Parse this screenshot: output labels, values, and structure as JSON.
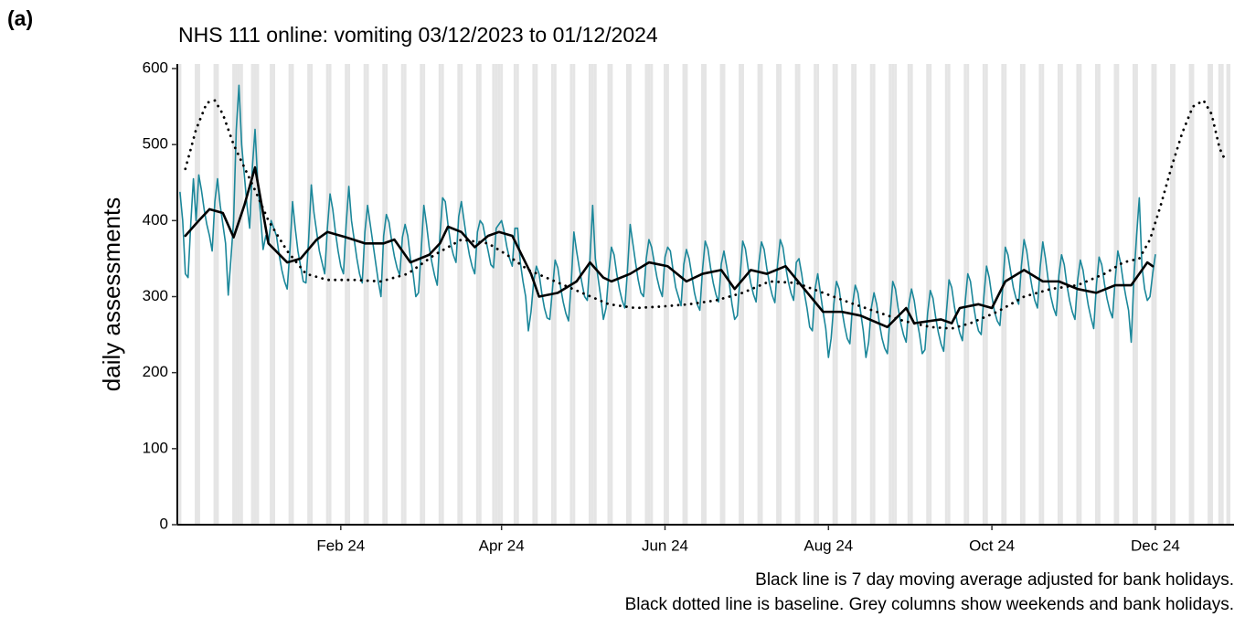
{
  "chart_data": {
    "type": "line",
    "tag": "(a)",
    "title": "NHS 111 online: vomiting 03/12/2023 to 01/12/2024",
    "ylabel": "daily assessments",
    "annotations": [
      "Black line is 7 day moving average adjusted for bank holidays.",
      "Black dotted line is baseline. Grey columns show weekends and bank holidays."
    ],
    "xlim": [
      -1,
      392
    ],
    "ylim": [
      0,
      600
    ],
    "yticks": [
      0,
      100,
      200,
      300,
      400,
      500,
      600
    ],
    "xticks": [
      {
        "value": 60,
        "label": "Feb 24"
      },
      {
        "value": 120,
        "label": "Apr 24"
      },
      {
        "value": 181,
        "label": "Jun 24"
      },
      {
        "value": 242,
        "label": "Aug 24"
      },
      {
        "value": 303,
        "label": "Oct 24"
      },
      {
        "value": 364,
        "label": "Dec 24"
      }
    ],
    "shaded_days": [
      0,
      6,
      7,
      13,
      14,
      20,
      21,
      22,
      23,
      27,
      28,
      29,
      34,
      35,
      41,
      42,
      48,
      49,
      55,
      56,
      62,
      63,
      69,
      70,
      76,
      77,
      83,
      84,
      90,
      91,
      97,
      98,
      104,
      105,
      111,
      112,
      117,
      118,
      119,
      120,
      125,
      126,
      132,
      133,
      139,
      140,
      146,
      147,
      153,
      154,
      155,
      160,
      161,
      167,
      168,
      174,
      175,
      176,
      181,
      182,
      188,
      189,
      195,
      196,
      202,
      203,
      209,
      210,
      216,
      217,
      223,
      224,
      230,
      231,
      237,
      238,
      244,
      245,
      251,
      252,
      258,
      259,
      265,
      266,
      267,
      272,
      273,
      279,
      280,
      286,
      287,
      293,
      294,
      300,
      301,
      307,
      308,
      314,
      315,
      321,
      322,
      328,
      329,
      335,
      336,
      342,
      343,
      349,
      350,
      356,
      357,
      363,
      364,
      370,
      371,
      377,
      378,
      384,
      385,
      388,
      389,
      391,
      392
    ],
    "shade_color": "#e5e5e5",
    "series": [
      {
        "color": "#1b879a",
        "style": "solid",
        "x": [
          0,
          1,
          2,
          3,
          4,
          5,
          6,
          7,
          8,
          9,
          10,
          11,
          12,
          13,
          14,
          15,
          16,
          17,
          18,
          19,
          20,
          21,
          22,
          23,
          24,
          25,
          26,
          27,
          28,
          29,
          30,
          31,
          32,
          33,
          34,
          35,
          36,
          37,
          38,
          39,
          40,
          41,
          42,
          43,
          44,
          45,
          46,
          47,
          48,
          49,
          50,
          51,
          52,
          53,
          54,
          55,
          56,
          57,
          58,
          59,
          60,
          61,
          62,
          63,
          64,
          65,
          66,
          67,
          68,
          69,
          70,
          71,
          72,
          73,
          74,
          75,
          76,
          77,
          78,
          79,
          80,
          81,
          82,
          83,
          84,
          85,
          86,
          87,
          88,
          89,
          90,
          91,
          92,
          93,
          94,
          95,
          96,
          97,
          98,
          99,
          100,
          101,
          102,
          103,
          104,
          105,
          106,
          107,
          108,
          109,
          110,
          111,
          112,
          113,
          114,
          115,
          116,
          117,
          118,
          119,
          120,
          121,
          122,
          123,
          124,
          125,
          126,
          127,
          128,
          129,
          130,
          131,
          132,
          133,
          134,
          135,
          136,
          137,
          138,
          139,
          140,
          141,
          142,
          143,
          144,
          145,
          146,
          147,
          148,
          149,
          150,
          151,
          152,
          153,
          154,
          155,
          156,
          157,
          158,
          159,
          160,
          161,
          162,
          163,
          164,
          165,
          166,
          167,
          168,
          169,
          170,
          171,
          172,
          173,
          174,
          175,
          176,
          177,
          178,
          179,
          180,
          181,
          182,
          183,
          184,
          185,
          186,
          187,
          188,
          189,
          190,
          191,
          192,
          193,
          194,
          195,
          196,
          197,
          198,
          199,
          200,
          201,
          202,
          203,
          204,
          205,
          206,
          207,
          208,
          209,
          210,
          211,
          212,
          213,
          214,
          215,
          216,
          217,
          218,
          219,
          220,
          221,
          222,
          223,
          224,
          225,
          226,
          227,
          228,
          229,
          230,
          231,
          232,
          233,
          234,
          235,
          236,
          237,
          238,
          239,
          240,
          241,
          242,
          243,
          244,
          245,
          246,
          247,
          248,
          249,
          250,
          251,
          252,
          253,
          254,
          255,
          256,
          257,
          258,
          259,
          260,
          261,
          262,
          263,
          264,
          265,
          266,
          267,
          268,
          269,
          270,
          271,
          272,
          273,
          274,
          275,
          276,
          277,
          278,
          279,
          280,
          281,
          282,
          283,
          284,
          285,
          286,
          287,
          288,
          289,
          290,
          291,
          292,
          293,
          294,
          295,
          296,
          297,
          298,
          299,
          300,
          301,
          302,
          303,
          304,
          305,
          306,
          307,
          308,
          309,
          310,
          311,
          312,
          313,
          314,
          315,
          316,
          317,
          318,
          319,
          320,
          321,
          322,
          323,
          324,
          325,
          326,
          327,
          328,
          329,
          330,
          331,
          332,
          333,
          334,
          335,
          336,
          337,
          338,
          339,
          340,
          341,
          342,
          343,
          344,
          345,
          346,
          347,
          348,
          349,
          350,
          351,
          352,
          353,
          354,
          355,
          356,
          357,
          358,
          359,
          360,
          361,
          362,
          363,
          364
        ],
        "values": [
          437,
          400,
          330,
          325,
          395,
          455,
          400,
          460,
          440,
          415,
          395,
          380,
          360,
          425,
          455,
          420,
          395,
          370,
          302,
          350,
          400,
          520,
          578,
          500,
          460,
          420,
          390,
          470,
          520,
          450,
          410,
          362,
          380,
          370,
          400,
          390,
          380,
          355,
          335,
          320,
          310,
          360,
          425,
          390,
          360,
          340,
          320,
          318,
          375,
          447,
          410,
          385,
          360,
          345,
          330,
          390,
          435,
          415,
          385,
          360,
          340,
          330,
          395,
          445,
          400,
          375,
          350,
          330,
          318,
          385,
          420,
          395,
          370,
          345,
          320,
          300,
          380,
          408,
          398,
          373,
          353,
          338,
          328,
          378,
          395,
          380,
          350,
          330,
          300,
          305,
          360,
          420,
          395,
          365,
          345,
          328,
          315,
          380,
          430,
          425,
          395,
          370,
          355,
          345,
          405,
          425,
          400,
          375,
          355,
          340,
          330,
          385,
          400,
          395,
          377,
          360,
          342,
          338,
          390,
          395,
          400,
          385,
          365,
          350,
          340,
          390,
          390,
          345,
          320,
          300,
          255,
          280,
          320,
          340,
          330,
          305,
          285,
          272,
          270,
          310,
          348,
          338,
          313,
          293,
          278,
          268,
          318,
          385,
          360,
          338,
          318,
          300,
          295,
          350,
          420,
          350,
          325,
          300,
          270,
          285,
          330,
          365,
          355,
          330,
          310,
          295,
          285,
          335,
          395,
          370,
          345,
          322,
          305,
          300,
          350,
          375,
          365,
          345,
          325,
          310,
          300,
          352,
          365,
          360,
          335,
          312,
          300,
          288,
          342,
          362,
          350,
          328,
          305,
          290,
          282,
          335,
          373,
          363,
          338,
          318,
          303,
          293,
          343,
          360,
          340,
          318,
          290,
          270,
          275,
          325,
          373,
          363,
          338,
          318,
          303,
          293,
          343,
          372,
          362,
          337,
          317,
          302,
          292,
          342,
          375,
          365,
          340,
          320,
          305,
          295,
          345,
          350,
          330,
          305,
          285,
          260,
          255,
          310,
          330,
          305,
          280,
          258,
          220,
          245,
          290,
          320,
          310,
          283,
          262,
          245,
          238,
          290,
          315,
          305,
          280,
          255,
          220,
          240,
          285,
          305,
          290,
          265,
          245,
          232,
          225,
          275,
          320,
          310,
          285,
          265,
          250,
          240,
          290,
          310,
          295,
          270,
          250,
          225,
          230,
          278,
          308,
          298,
          273,
          253,
          238,
          228,
          278,
          322,
          312,
          287,
          267,
          252,
          242,
          292,
          330,
          320,
          292,
          270,
          255,
          250,
          300,
          340,
          325,
          300,
          280,
          268,
          262,
          310,
          365,
          355,
          333,
          312,
          298,
          290,
          340,
          375,
          360,
          333,
          312,
          295,
          285,
          338,
          372,
          350,
          322,
          300,
          285,
          275,
          328,
          355,
          342,
          315,
          295,
          280,
          270,
          322,
          348,
          335,
          310,
          288,
          272,
          258,
          315,
          352,
          342,
          317,
          297,
          282,
          272,
          322,
          360,
          345,
          320,
          300,
          282,
          240,
          325,
          380,
          430,
          340,
          310,
          295,
          300,
          330,
          355
        ]
      },
      {
        "color": "#000000",
        "style": "dotted",
        "x": [
          2,
          6,
          10,
          13,
          16,
          20,
          24,
          28,
          33,
          40,
          47,
          55,
          65,
          75,
          85,
          95,
          105,
          115,
          122,
          130,
          140,
          150,
          160,
          170,
          180,
          190,
          200,
          210,
          220,
          230,
          240,
          250,
          260,
          270,
          280,
          288,
          295,
          305,
          315,
          325,
          335,
          345,
          352,
          358,
          362,
          366,
          370,
          374,
          378,
          382,
          385,
          388,
          390
        ],
        "values": [
          468,
          520,
          555,
          558,
          540,
          500,
          470,
          440,
          400,
          360,
          330,
          322,
          322,
          320,
          330,
          355,
          375,
          370,
          355,
          335,
          320,
          305,
          290,
          285,
          287,
          290,
          295,
          305,
          320,
          318,
          305,
          292,
          280,
          268,
          260,
          258,
          265,
          280,
          300,
          310,
          315,
          330,
          345,
          350,
          375,
          420,
          470,
          515,
          550,
          558,
          540,
          495,
          480
        ]
      },
      {
        "color": "#000000",
        "style": "solid-thick",
        "x": [
          2,
          7,
          11,
          16,
          20,
          24,
          28,
          33,
          40,
          45,
          51,
          55,
          62,
          69,
          76,
          80,
          83,
          86,
          93,
          97,
          100,
          105,
          110,
          115,
          119,
          124,
          131,
          134,
          141,
          148,
          153,
          158,
          161,
          168,
          175,
          182,
          189,
          195,
          202,
          207,
          213,
          219,
          226,
          233,
          240,
          247,
          254,
          264,
          271,
          274,
          284,
          288,
          291,
          298,
          303,
          308,
          315,
          322,
          328,
          335,
          342,
          349,
          355,
          361,
          363
        ],
        "values": [
          380,
          400,
          415,
          410,
          378,
          420,
          470,
          370,
          345,
          350,
          375,
          385,
          378,
          370,
          370,
          375,
          360,
          345,
          355,
          370,
          392,
          385,
          365,
          380,
          385,
          380,
          330,
          300,
          305,
          320,
          345,
          325,
          320,
          330,
          345,
          340,
          320,
          330,
          335,
          310,
          335,
          330,
          340,
          310,
          280,
          280,
          275,
          260,
          285,
          265,
          270,
          265,
          285,
          290,
          285,
          320,
          335,
          320,
          320,
          310,
          305,
          315,
          315,
          345,
          340
        ]
      }
    ]
  }
}
